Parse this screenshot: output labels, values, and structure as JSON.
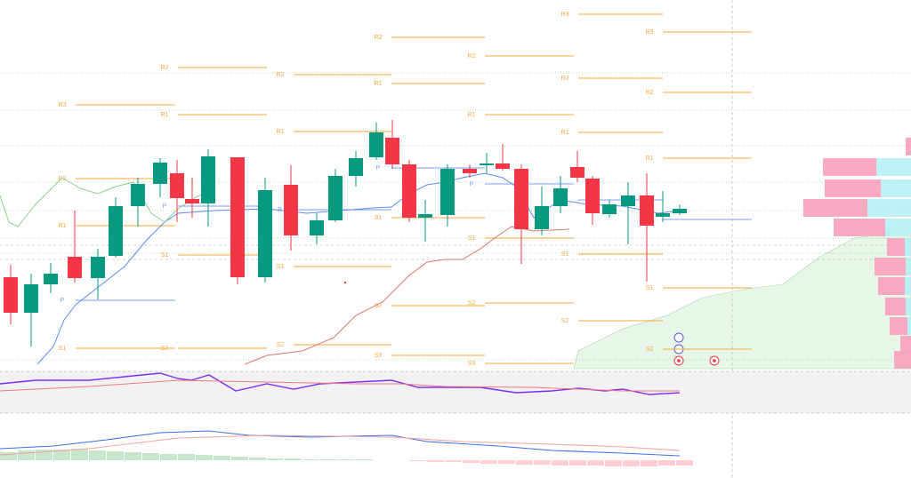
{
  "chart_data": [
    {
      "type": "candlestick",
      "xlim": [
        0,
        1024
      ],
      "ylim": [
        0,
        415
      ],
      "up_color": "#089981",
      "down_color": "#f23645",
      "x": [
        12,
        35,
        57,
        84,
        110,
        130,
        155,
        180,
        199,
        216,
        234,
        267,
        298,
        327,
        356,
        377,
        400,
        423,
        441,
        460,
        478,
        503,
        528,
        547,
        565,
        586,
        609,
        630,
        649,
        666,
        685,
        706,
        727,
        745,
        764
      ],
      "open": [
        103,
        63,
        95,
        126,
        102,
        127,
        183,
        208,
        220,
        191,
        186,
        238,
        103,
        207,
        150,
        167,
        217,
        238,
        260,
        230,
        170,
        173,
        225,
        229,
        231,
        225,
        157,
        183,
        227,
        214,
        174,
        183,
        195,
        171,
        175
      ],
      "high": [
        117,
        107,
        119,
        178,
        135,
        193,
        215,
        237,
        235,
        215,
        247,
        238,
        215,
        229,
        175,
        225,
        245,
        277,
        280,
        235,
        190,
        230,
        230,
        243,
        253,
        230,
        205,
        217,
        245,
        217,
        190,
        210,
        220,
        200,
        185
      ],
      "low": [
        50,
        25,
        85,
        97,
        78,
        125,
        160,
        193,
        165,
        170,
        160,
        95,
        97,
        133,
        140,
        165,
        205,
        235,
        225,
        165,
        143,
        160,
        215,
        220,
        223,
        118,
        150,
        175,
        210,
        162,
        170,
        140,
        98,
        165,
        173
      ],
      "close": [
        63,
        95,
        107,
        102,
        126,
        183,
        208,
        232,
        192,
        186,
        239,
        103,
        201,
        150,
        167,
        217,
        237,
        266,
        230,
        170,
        174,
        225,
        220,
        231,
        225,
        157,
        183,
        203,
        215,
        175,
        185,
        195,
        161,
        175,
        180
      ],
      "pivot_color": "#f7a93b",
      "pivot_p_color": "#7b9ff5",
      "pivots": [
        {
          "start": 85,
          "end": 197,
          "levels": [
            {
              "label": "R3",
              "value": 297
            },
            {
              "label": "R2",
              "value": 214
            },
            {
              "label": "R1",
              "value": 161
            },
            {
              "label": "P",
              "value": 77
            },
            {
              "label": "S1",
              "value": 23
            }
          ]
        },
        {
          "start": 200,
          "end": 300,
          "levels": [
            {
              "label": "R2",
              "value": 339
            },
            {
              "label": "R1",
              "value": 286
            },
            {
              "label": "P",
              "value": 183
            },
            {
              "label": "S1",
              "value": 128
            },
            {
              "label": "S2",
              "value": 23
            }
          ]
        },
        {
          "start": 330,
          "end": 440,
          "levels": [
            {
              "label": "R2",
              "value": 331
            },
            {
              "label": "R1",
              "value": 267
            },
            {
              "label": "P",
              "value": 179
            },
            {
              "label": "S1",
              "value": 115
            },
            {
              "label": "S2",
              "value": 27
            }
          ]
        },
        {
          "start": 440,
          "end": 545,
          "levels": [
            {
              "label": "R2",
              "value": 373
            },
            {
              "label": "R1",
              "value": 321
            },
            {
              "label": "P",
              "value": 226
            },
            {
              "label": "S1",
              "value": 170
            },
            {
              "label": "S2",
              "value": 71
            },
            {
              "label": "S3",
              "value": 15
            }
          ]
        },
        {
          "start": 545,
          "end": 645,
          "levels": [
            {
              "label": "R2",
              "value": 352
            },
            {
              "label": "R1",
              "value": 286
            },
            {
              "label": "P",
              "value": 208
            },
            {
              "label": "S1",
              "value": 147
            },
            {
              "label": "S2",
              "value": 74
            },
            {
              "label": "S3",
              "value": 6
            }
          ]
        },
        {
          "start": 650,
          "end": 745,
          "levels": [
            {
              "label": "R3",
              "value": 399
            },
            {
              "label": "R2",
              "value": 327
            },
            {
              "label": "R1",
              "value": 266
            },
            {
              "label": "P",
              "value": 190
            },
            {
              "label": "S1",
              "value": 129
            },
            {
              "label": "S2",
              "value": 54
            }
          ]
        },
        {
          "start": 745,
          "end": 845,
          "levels": [
            {
              "label": "R3",
              "value": 379
            },
            {
              "label": "R2",
              "value": 311
            },
            {
              "label": "R1",
              "value": 237
            },
            {
              "label": "P",
              "value": 168
            },
            {
              "label": "S1",
              "value": 91
            },
            {
              "label": "S2",
              "value": 22
            }
          ]
        }
      ],
      "overlays": [
        {
          "color": "#5b8def",
          "x": [
            42,
            60,
            72,
            85,
            140,
            165,
            185,
            200,
            240,
            300,
            345,
            420,
            440,
            460,
            480,
            500,
            520,
            545,
            565,
            580,
            600,
            630,
            660,
            700,
            740,
            764
          ],
          "values": [
            5,
            25,
            55,
            72,
            115,
            145,
            165,
            175,
            178,
            180,
            175,
            181,
            182,
            197,
            207,
            210,
            215,
            220,
            215,
            205,
            170,
            190,
            185,
            183,
            175,
            178
          ]
        },
        {
          "color": "#d9776f",
          "x": [
            275,
            300,
            340,
            375,
            400,
            430,
            460,
            480,
            500,
            520,
            540,
            560,
            575,
            600,
            640
          ],
          "values": [
            5,
            15,
            20,
            35,
            60,
            75,
            105,
            120,
            123,
            123,
            135,
            150,
            160,
            155,
            157
          ]
        },
        {
          "color": "#8fd18f",
          "x": [
            0,
            10,
            20,
            40,
            70,
            90,
            110,
            130,
            150,
            170,
            185,
            200,
            220,
            235
          ],
          "values": [
            195,
            165,
            160,
            185,
            215,
            203,
            197,
            205,
            210,
            175,
            165,
            180,
            193,
            200
          ]
        }
      ],
      "profile": {
        "xlim": [
          0,
          125
        ],
        "up_color": "#b3eef3",
        "down_color": "#f7a1bb",
        "levels": [
          250,
          227,
          203,
          181,
          159,
          137,
          115,
          93,
          70,
          48,
          27,
          10
        ],
        "down": [
          6,
          60,
          63,
          72,
          58,
          20,
          35,
          30,
          23,
          20,
          12,
          19
        ],
        "up": [
          0,
          39,
          34,
          49,
          29,
          7,
          6,
          7,
          6,
          4,
          0,
          0
        ]
      }
    },
    {
      "type": "line",
      "xlim": [
        0,
        1024
      ],
      "ylim": [
        0,
        52
      ],
      "series": [
        {
          "color": "#7b2ff7",
          "x": [
            0,
            40,
            100,
            140,
            180,
            200,
            215,
            235,
            265,
            300,
            330,
            360,
            400,
            440,
            470,
            500,
            540,
            580,
            620,
            650,
            680,
            700,
            730,
            764
          ],
          "values": [
            38,
            42,
            42,
            46,
            50,
            44,
            42,
            48,
            30,
            38,
            32,
            38,
            40,
            42,
            34,
            34,
            34,
            28,
            30,
            33,
            30,
            32,
            26,
            28
          ]
        },
        {
          "color": "#f0787a",
          "x": [
            0,
            100,
            200,
            300,
            400,
            450,
            500,
            600,
            700,
            764
          ],
          "values": [
            30,
            35,
            42,
            40,
            38,
            38,
            35,
            34,
            30,
            30
          ]
        }
      ]
    },
    {
      "type": "macd",
      "xlim": [
        0,
        1024
      ],
      "ylim": [
        -20,
        48
      ],
      "series": [
        {
          "color": "#3f6fe8",
          "x": [
            0,
            60,
            120,
            180,
            235,
            280,
            350,
            440,
            480,
            560,
            620,
            700,
            764
          ],
          "values": [
            13,
            16,
            23,
            31,
            33,
            28,
            26,
            28,
            21,
            16,
            11,
            8,
            5
          ]
        },
        {
          "color": "#f4a3a3",
          "x": [
            0,
            100,
            200,
            300,
            440,
            520,
            620,
            700,
            764
          ],
          "values": [
            6,
            13,
            25,
            28,
            26,
            21,
            18,
            15,
            11
          ]
        }
      ],
      "histogram": {
        "up_color": "#c8e6c9",
        "down_color": "#ffcdd2",
        "x": [
          0,
          20,
          40,
          60,
          80,
          100,
          120,
          140,
          160,
          180,
          200,
          220,
          240,
          260,
          280,
          300,
          320,
          340,
          360,
          380,
          400,
          420,
          440,
          460,
          480,
          500,
          520,
          540,
          560,
          580,
          600,
          620,
          640,
          660,
          680,
          700,
          720,
          740,
          760
        ],
        "values": [
          9,
          11,
          12,
          12,
          13,
          11,
          10,
          9,
          8,
          7,
          7,
          6,
          5,
          4,
          3,
          2,
          2,
          1,
          1,
          1,
          1,
          0,
          0,
          -1,
          -2,
          -2,
          -3,
          -4,
          -4,
          -5,
          -5,
          -6,
          -6,
          -6,
          -7,
          -7,
          -7,
          -6,
          -6
        ]
      }
    }
  ]
}
